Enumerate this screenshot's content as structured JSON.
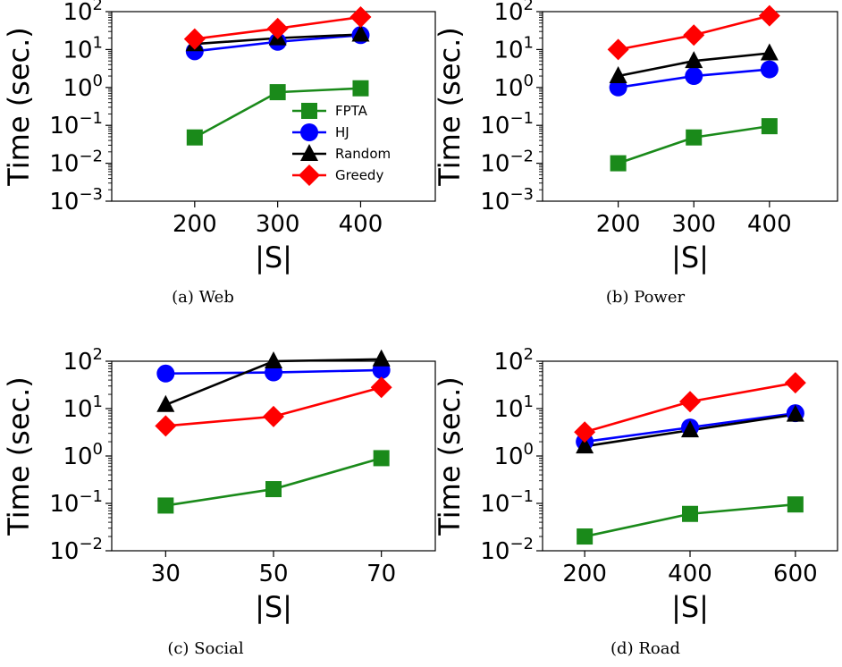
{
  "colors": {
    "FPTA": "#1a8a1a",
    "HJ": "#0000ff",
    "Random": "#000000",
    "Greedy": "#ff0000"
  },
  "chart_data": [
    {
      "type": "line",
      "caption": "(a) Web",
      "xlabel": "|S|",
      "ylabel": "Time (sec.)",
      "yscale": "log",
      "ylim_exp": [
        -3,
        2
      ],
      "xlim": [
        100,
        490
      ],
      "x": [
        200,
        300,
        400
      ],
      "xticks": [
        "200",
        "300",
        "400"
      ],
      "grid": false,
      "legend": "lower-right",
      "series": [
        {
          "name": "FPTA",
          "marker": "square",
          "values": [
            0.048,
            0.75,
            0.95
          ]
        },
        {
          "name": "HJ",
          "marker": "circle",
          "values": [
            9.0,
            16.0,
            24.0
          ]
        },
        {
          "name": "Random",
          "marker": "triangle",
          "values": [
            14.0,
            20.0,
            25.0
          ]
        },
        {
          "name": "Greedy",
          "marker": "diamond",
          "values": [
            19.0,
            36.0,
            72.0
          ]
        }
      ]
    },
    {
      "type": "line",
      "caption": "(b) Power",
      "xlabel": "|S|",
      "ylabel": "Time (sec.)",
      "yscale": "log",
      "ylim_exp": [
        -3,
        2
      ],
      "xlim": [
        100,
        490
      ],
      "x": [
        200,
        300,
        400
      ],
      "xticks": [
        "200",
        "300",
        "400"
      ],
      "grid": false,
      "series": [
        {
          "name": "FPTA",
          "marker": "square",
          "values": [
            0.01,
            0.048,
            0.095
          ]
        },
        {
          "name": "HJ",
          "marker": "circle",
          "values": [
            1.0,
            2.0,
            3.0
          ]
        },
        {
          "name": "Random",
          "marker": "triangle",
          "values": [
            2.0,
            5.0,
            8.0
          ]
        },
        {
          "name": "Greedy",
          "marker": "diamond",
          "values": [
            10.0,
            24.0,
            78.0
          ]
        }
      ]
    },
    {
      "type": "line",
      "caption": "(c) Social",
      "xlabel": "|S|",
      "ylabel": "Time (sec.)",
      "yscale": "log",
      "ylim_exp": [
        -2,
        2
      ],
      "xlim": [
        20,
        80
      ],
      "x": [
        30,
        50,
        70
      ],
      "xticks": [
        "30",
        "50",
        "70"
      ],
      "grid": false,
      "series": [
        {
          "name": "FPTA",
          "marker": "square",
          "values": [
            0.09,
            0.2,
            0.9
          ]
        },
        {
          "name": "HJ",
          "marker": "circle",
          "values": [
            55.0,
            58.0,
            65.0
          ]
        },
        {
          "name": "Random",
          "marker": "triangle",
          "values": [
            12.0,
            100.0,
            110.0
          ]
        },
        {
          "name": "Greedy",
          "marker": "diamond",
          "values": [
            4.3,
            6.8,
            28.0
          ]
        }
      ]
    },
    {
      "type": "line",
      "caption": "(d) Road",
      "xlabel": "|S|",
      "ylabel": "Time (sec.)",
      "yscale": "log",
      "ylim_exp": [
        -2,
        2
      ],
      "xlim": [
        120,
        680
      ],
      "x": [
        200,
        400,
        600
      ],
      "xticks": [
        "200",
        "400",
        "600"
      ],
      "grid": false,
      "series": [
        {
          "name": "FPTA",
          "marker": "square",
          "values": [
            0.02,
            0.06,
            0.095
          ]
        },
        {
          "name": "HJ",
          "marker": "circle",
          "values": [
            2.0,
            4.0,
            8.0
          ]
        },
        {
          "name": "Random",
          "marker": "triangle",
          "values": [
            1.6,
            3.5,
            7.5
          ]
        },
        {
          "name": "Greedy",
          "marker": "diamond",
          "values": [
            3.2,
            14.0,
            35.0
          ]
        }
      ]
    }
  ]
}
